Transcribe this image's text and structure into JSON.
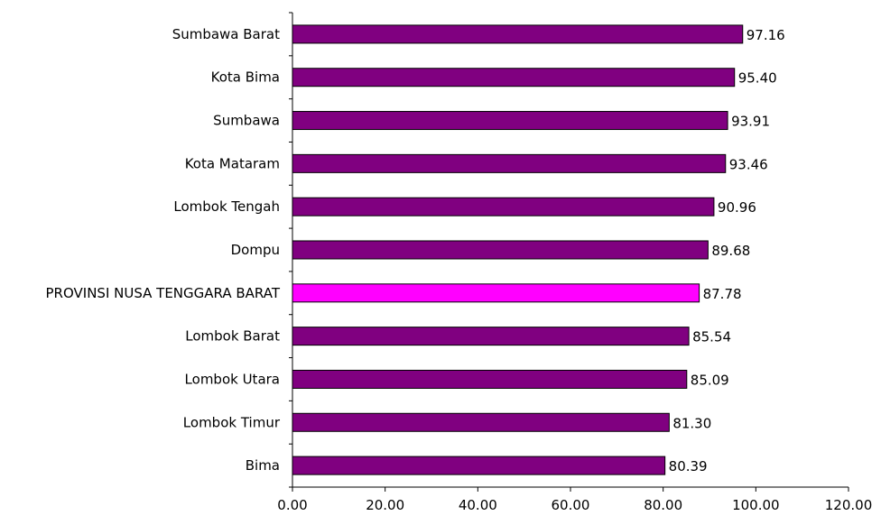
{
  "chart_data": {
    "type": "bar",
    "orientation": "horizontal",
    "categories": [
      "Sumbawa Barat",
      "Kota Bima",
      "Sumbawa",
      "Kota Mataram",
      "Lombok Tengah",
      "Dompu",
      "PROVINSI NUSA TENGGARA BARAT",
      "Lombok Barat",
      "Lombok Utara",
      "Lombok Timur",
      "Bima"
    ],
    "values": [
      97.16,
      95.4,
      93.91,
      93.46,
      90.96,
      89.68,
      87.78,
      85.54,
      85.09,
      81.3,
      80.39
    ],
    "value_labels": [
      "97.16",
      "95.40",
      "93.91",
      "93.46",
      "90.96",
      "89.68",
      "87.78",
      "85.54",
      "85.09",
      "81.30",
      "80.39"
    ],
    "xlim": [
      0,
      120
    ],
    "xticks": [
      "0.00",
      "20.00",
      "40.00",
      "60.00",
      "80.00",
      "100.00",
      "120.00"
    ],
    "grid": false,
    "legend": "none",
    "colors": {
      "bar": "#800080",
      "highlight": "#FF00FF",
      "highlight_category": "PROVINSI NUSA TENGGARA BARAT",
      "outline": "#000000"
    }
  }
}
